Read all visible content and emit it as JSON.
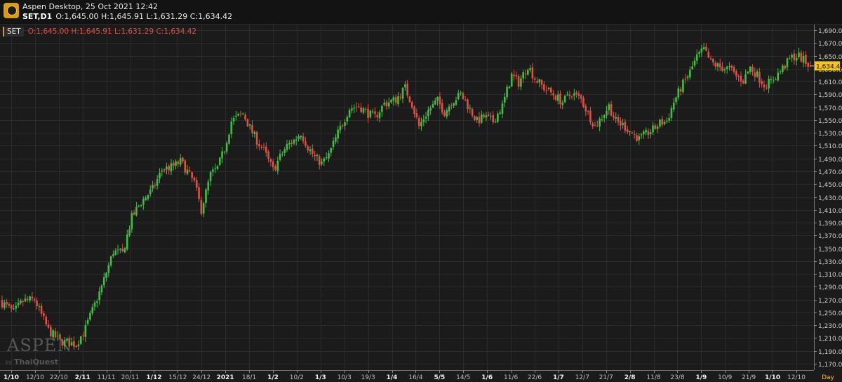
{
  "header": {
    "app_title": "Aspen Desktop, 25 Oct 2021 12:42",
    "symbol_period": "SET,D1",
    "ohlc_text": "O:1,645.00 H:1,645.91 L:1,631.29 C:1,634.42"
  },
  "legend": {
    "tag": "SET",
    "ohlc_text": "O:1,645.00 H:1,645.91 L:1,631.29 C:1,634.42"
  },
  "watermark": {
    "brand": "ASPEN",
    "by": "by",
    "vendor": "ThaiQuest"
  },
  "colors": {
    "background": "#1b1b1b",
    "up": "#3fbf3f",
    "down": "#e0503e",
    "grid": "#2b2b2b",
    "axis_text": "#d0d0d0",
    "last_price_bg": "#f5c518"
  },
  "chart_data": {
    "type": "candlestick",
    "title": "SET,D1",
    "timeframe_label": "Day",
    "y_range": [
      1160,
      1700
    ],
    "y_ticks": [
      "1,690.00",
      "1,670.00",
      "1,650.00",
      "1,630.00",
      "1,610.00",
      "1,590.00",
      "1,570.00",
      "1,550.00",
      "1,530.00",
      "1,510.00",
      "1,490.00",
      "1,470.00",
      "1,450.00",
      "1,430.00",
      "1,410.00",
      "1,390.00",
      "1,370.00",
      "1,350.00",
      "1,330.00",
      "1,310.00",
      "1,290.00",
      "1,270.00",
      "1,250.00",
      "1,230.00",
      "1,210.00",
      "1,190.00",
      "1,170.00"
    ],
    "x_labels": [
      {
        "text": "1/10",
        "bold": true
      },
      {
        "text": "12/10",
        "bold": false
      },
      {
        "text": "22/10",
        "bold": false
      },
      {
        "text": "2/11",
        "bold": true
      },
      {
        "text": "11/11",
        "bold": false
      },
      {
        "text": "20/11",
        "bold": false
      },
      {
        "text": "1/12",
        "bold": true
      },
      {
        "text": "15/12",
        "bold": false
      },
      {
        "text": "24/12",
        "bold": false
      },
      {
        "text": "2021",
        "bold": true
      },
      {
        "text": "18/1",
        "bold": false
      },
      {
        "text": "1/2",
        "bold": true
      },
      {
        "text": "10/2",
        "bold": false
      },
      {
        "text": "1/3",
        "bold": true
      },
      {
        "text": "10/3",
        "bold": false
      },
      {
        "text": "19/3",
        "bold": false
      },
      {
        "text": "1/4",
        "bold": true
      },
      {
        "text": "16/4",
        "bold": false
      },
      {
        "text": "5/5",
        "bold": true
      },
      {
        "text": "14/5",
        "bold": false
      },
      {
        "text": "1/6",
        "bold": true
      },
      {
        "text": "11/6",
        "bold": false
      },
      {
        "text": "22/6",
        "bold": false
      },
      {
        "text": "1/7",
        "bold": true
      },
      {
        "text": "12/7",
        "bold": false
      },
      {
        "text": "21/7",
        "bold": false
      },
      {
        "text": "2/8",
        "bold": true
      },
      {
        "text": "11/8",
        "bold": false
      },
      {
        "text": "23/8",
        "bold": false
      },
      {
        "text": "1/9",
        "bold": true
      },
      {
        "text": "10/9",
        "bold": false
      },
      {
        "text": "21/9",
        "bold": false
      },
      {
        "text": "1/10",
        "bold": true
      },
      {
        "text": "12/10",
        "bold": false
      }
    ],
    "last_price": "1,634.42",
    "anchors": [
      [
        0,
        1265
      ],
      [
        5,
        1250
      ],
      [
        9,
        1268
      ],
      [
        14,
        1270
      ],
      [
        20,
        1222
      ],
      [
        25,
        1205
      ],
      [
        32,
        1200
      ],
      [
        36,
        1225
      ],
      [
        43,
        1290
      ],
      [
        48,
        1345
      ],
      [
        52,
        1342
      ],
      [
        56,
        1398
      ],
      [
        60,
        1422
      ],
      [
        65,
        1442
      ],
      [
        69,
        1472
      ],
      [
        74,
        1478
      ],
      [
        77,
        1485
      ],
      [
        80,
        1470
      ],
      [
        83,
        1452
      ],
      [
        86,
        1410
      ],
      [
        90,
        1465
      ],
      [
        93,
        1475
      ],
      [
        96,
        1505
      ],
      [
        99,
        1548
      ],
      [
        104,
        1560
      ],
      [
        107,
        1538
      ],
      [
        110,
        1518
      ],
      [
        113,
        1502
      ],
      [
        117,
        1472
      ],
      [
        120,
        1492
      ],
      [
        123,
        1510
      ],
      [
        126,
        1518
      ],
      [
        129,
        1530
      ],
      [
        132,
        1508
      ],
      [
        135,
        1492
      ],
      [
        138,
        1482
      ],
      [
        141,
        1495
      ],
      [
        145,
        1530
      ],
      [
        150,
        1568
      ],
      [
        154,
        1572
      ],
      [
        158,
        1560
      ],
      [
        161,
        1555
      ],
      [
        165,
        1575
      ],
      [
        170,
        1582
      ],
      [
        174,
        1600
      ],
      [
        177,
        1575
      ],
      [
        180,
        1540
      ],
      [
        184,
        1565
      ],
      [
        188,
        1580
      ],
      [
        191,
        1562
      ],
      [
        194,
        1578
      ],
      [
        198,
        1590
      ],
      [
        201,
        1573
      ],
      [
        205,
        1548
      ],
      [
        208,
        1555
      ],
      [
        212,
        1548
      ],
      [
        216,
        1572
      ],
      [
        220,
        1620
      ],
      [
        223,
        1608
      ],
      [
        227,
        1635
      ],
      [
        230,
        1615
      ],
      [
        234,
        1600
      ],
      [
        238,
        1590
      ],
      [
        242,
        1578
      ],
      [
        246,
        1592
      ],
      [
        250,
        1582
      ],
      [
        253,
        1560
      ],
      [
        256,
        1540
      ],
      [
        259,
        1555
      ],
      [
        262,
        1572
      ],
      [
        265,
        1548
      ],
      [
        268,
        1542
      ],
      [
        272,
        1530
      ],
      [
        275,
        1520
      ],
      [
        278,
        1528
      ],
      [
        281,
        1535
      ],
      [
        284,
        1545
      ],
      [
        287,
        1548
      ],
      [
        290,
        1578
      ],
      [
        293,
        1600
      ],
      [
        297,
        1625
      ],
      [
        300,
        1648
      ],
      [
        303,
        1660
      ],
      [
        306,
        1640
      ],
      [
        310,
        1632
      ],
      [
        314,
        1630
      ],
      [
        317,
        1618
      ],
      [
        320,
        1612
      ],
      [
        323,
        1632
      ],
      [
        326,
        1620
      ],
      [
        329,
        1605
      ],
      [
        332,
        1610
      ],
      [
        335,
        1622
      ],
      [
        338,
        1635
      ],
      [
        341,
        1648
      ],
      [
        344,
        1650
      ],
      [
        347,
        1640
      ],
      [
        349,
        1634.42
      ]
    ]
  }
}
